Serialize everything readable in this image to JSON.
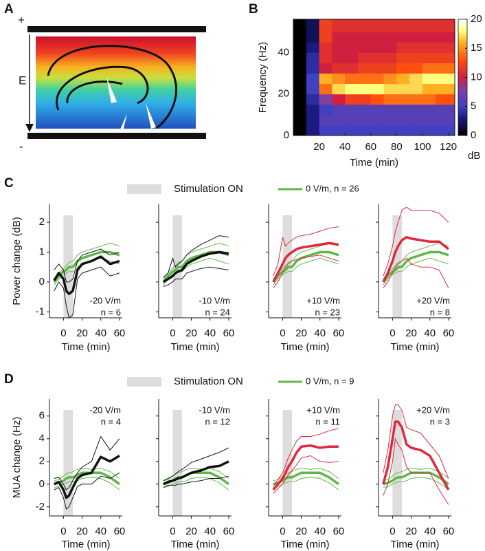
{
  "panel_labels": [
    "A",
    "B",
    "C",
    "D"
  ],
  "diagram": {
    "plus": "+",
    "field": "E",
    "minus": "-"
  },
  "chart_data": [
    {
      "type": "heatmap",
      "xlabel": "Time (min)",
      "ylabel": "Frequency (Hz)",
      "colorbar_label": "dB",
      "xlim": [
        0,
        125
      ],
      "ylim": [
        0,
        56
      ],
      "xticks": [
        20,
        40,
        60,
        80,
        100,
        120
      ],
      "yticks": [
        0,
        20,
        40
      ],
      "clim": [
        0,
        20
      ],
      "cticks": [
        0,
        5,
        10,
        15,
        20
      ],
      "x_edges": [
        0,
        10,
        20,
        30,
        40,
        50,
        60,
        70,
        80,
        90,
        100,
        110,
        125
      ],
      "y_edges": [
        0,
        5,
        10,
        15,
        20,
        25,
        30,
        35,
        40,
        45,
        50,
        56
      ],
      "z": [
        [
          0,
          3,
          5,
          5,
          5,
          5,
          5,
          5,
          5,
          5,
          5,
          5
        ],
        [
          0,
          3,
          6,
          6,
          6,
          6,
          6,
          6,
          6,
          6,
          6,
          6
        ],
        [
          0,
          3,
          5,
          6,
          6,
          6,
          6,
          6,
          6,
          6,
          6,
          6
        ],
        [
          0,
          4,
          8,
          10,
          12,
          12,
          13,
          14,
          14,
          14,
          14,
          13
        ],
        [
          0,
          5,
          14,
          17,
          18,
          18,
          18,
          17,
          17,
          17,
          16,
          16
        ],
        [
          0,
          5,
          16,
          15,
          14,
          14,
          14,
          15,
          16,
          17,
          18,
          18
        ],
        [
          0,
          4,
          10,
          11,
          11,
          12,
          12,
          12,
          13,
          13,
          14,
          14
        ],
        [
          0,
          4,
          11,
          10,
          10,
          11,
          11,
          11,
          12,
          12,
          12,
          12
        ],
        [
          0,
          3,
          11,
          10,
          10,
          10,
          10,
          10,
          11,
          11,
          11,
          11
        ],
        [
          0,
          2,
          12,
          10,
          10,
          10,
          10,
          10,
          10,
          10,
          10,
          10
        ],
        [
          0,
          2,
          12,
          11,
          11,
          11,
          11,
          11,
          11,
          11,
          11,
          11
        ]
      ]
    },
    {
      "type": "line",
      "ylabel": "Power change (dB)",
      "xlabel": "Time (min)",
      "legend": {
        "stim_label": "Stimulation ON",
        "control_label": "0 V/m, n = 26"
      },
      "xlim": [
        -15,
        63
      ],
      "ylim": [
        -1.2,
        2.6
      ],
      "xticks": [
        0,
        20,
        40,
        60
      ],
      "yticks": [
        -1,
        0,
        1,
        2
      ],
      "stim": [
        0,
        10
      ],
      "stim_color": "#dddddd",
      "x": [
        -10,
        -5,
        0,
        3,
        6,
        10,
        15,
        20,
        30,
        40,
        50,
        60
      ],
      "control": {
        "color": "#5cb847",
        "mean": [
          0,
          0.2,
          0.35,
          0.4,
          0.5,
          0.5,
          0.7,
          0.8,
          0.9,
          1.0,
          1.0,
          0.9
        ],
        "upper": [
          0.1,
          0.3,
          0.45,
          0.55,
          0.65,
          0.7,
          0.9,
          1.0,
          1.1,
          1.2,
          1.3,
          1.2
        ],
        "lower": [
          -0.1,
          0.1,
          0.25,
          0.3,
          0.35,
          0.35,
          0.5,
          0.6,
          0.7,
          0.8,
          0.7,
          0.6
        ]
      },
      "panels": [
        {
          "field": "-20 V/m",
          "n": "n = 6",
          "color": "#111111",
          "mean": [
            0.05,
            0.3,
            0.1,
            -0.3,
            -0.4,
            -0.3,
            0.4,
            0.6,
            0.7,
            0.85,
            0.6,
            0.7
          ],
          "upper": [
            0.4,
            0.6,
            0.4,
            0,
            0,
            0.1,
            0.7,
            0.9,
            1.0,
            1.1,
            0.9,
            1.0
          ],
          "lower": [
            -0.3,
            0,
            -0.2,
            -0.8,
            -1.2,
            -1.1,
            0.1,
            0.3,
            0.4,
            0.5,
            0.2,
            0.3
          ]
        },
        {
          "field": "-10 V/m",
          "n": "n = 24",
          "color": "#111111",
          "mean": [
            0,
            0.1,
            0.2,
            0.3,
            0.35,
            0.4,
            0.6,
            0.7,
            0.85,
            0.95,
            1.0,
            0.95
          ],
          "upper": [
            0.15,
            0.3,
            0.8,
            0.5,
            0.6,
            0.7,
            0.9,
            1.05,
            1.25,
            1.4,
            1.55,
            1.5
          ],
          "lower": [
            -0.15,
            -0.1,
            0,
            0.1,
            0.1,
            0.1,
            0.3,
            0.35,
            0.45,
            0.5,
            0.45,
            0.4
          ]
        },
        {
          "field": "+10 V/m",
          "n": "n = 23",
          "color": "#e0283c",
          "mean": [
            0,
            0.3,
            0.6,
            0.8,
            0.9,
            1.0,
            1.1,
            1.15,
            1.2,
            1.25,
            1.3,
            1.25
          ],
          "upper": [
            0.2,
            0.6,
            1.5,
            1.2,
            1.3,
            1.4,
            1.5,
            1.55,
            1.6,
            1.7,
            1.8,
            1.85
          ],
          "lower": [
            -0.2,
            0,
            0.3,
            0.5,
            0.6,
            0.7,
            0.75,
            0.8,
            0.85,
            0.9,
            0.8,
            0.7
          ]
        },
        {
          "field": "+20 V/m",
          "n": "n = 8",
          "color": "#e0283c",
          "mean": [
            0,
            0.3,
            0.7,
            1.0,
            1.2,
            1.4,
            1.5,
            1.45,
            1.4,
            1.35,
            1.35,
            1.1
          ],
          "upper": [
            0.2,
            0.6,
            1.2,
            1.7,
            2.0,
            2.4,
            2.5,
            2.4,
            2.4,
            2.4,
            2.3,
            2.0
          ],
          "lower": [
            -0.2,
            0,
            0.3,
            0.5,
            0.6,
            0.7,
            0.8,
            0.6,
            0.5,
            0.5,
            0.4,
            -0.2
          ]
        }
      ]
    },
    {
      "type": "line",
      "ylabel": "MUA change (Hz)",
      "xlabel": "Time (min)",
      "legend": {
        "stim_label": "Stimulation ON",
        "control_label": "0 V/m, n = 9"
      },
      "xlim": [
        -15,
        63
      ],
      "ylim": [
        -2.8,
        7.5
      ],
      "xticks": [
        0,
        20,
        40,
        60
      ],
      "yticks": [
        -2,
        0,
        2,
        4,
        6
      ],
      "stim": [
        0,
        10
      ],
      "stim_color": "#dddddd",
      "x": [
        -10,
        -5,
        0,
        3,
        6,
        10,
        15,
        20,
        30,
        40,
        50,
        60
      ],
      "control": {
        "color": "#5cb847",
        "mean": [
          0,
          0.1,
          0.3,
          0.5,
          0.6,
          0.6,
          0.8,
          1.0,
          1.0,
          1.0,
          0.6,
          0
        ],
        "upper": [
          0.3,
          0.4,
          0.7,
          0.9,
          1.0,
          1.1,
          1.3,
          1.4,
          1.3,
          1.4,
          1.1,
          0.5
        ],
        "lower": [
          -0.3,
          -0.2,
          0,
          0.1,
          0.2,
          0.2,
          0.3,
          0.5,
          0.6,
          0.5,
          0.1,
          -0.5
        ]
      },
      "panels": [
        {
          "field": "-20 V/m",
          "n": "n = 4",
          "color": "#111111",
          "mean": [
            0,
            0.2,
            -0.5,
            -1.2,
            -1.0,
            -0.3,
            0.5,
            0.8,
            1.0,
            2.4,
            2.0,
            2.5
          ],
          "upper": [
            0.5,
            0.6,
            0,
            -0.5,
            -0.3,
            0.3,
            1.0,
            1.5,
            2.0,
            4.2,
            3.0,
            4.0
          ],
          "lower": [
            -0.5,
            -0.3,
            -1.2,
            -2.2,
            -2.0,
            -1.2,
            -0.2,
            0,
            0,
            0.7,
            0.5,
            1.0
          ]
        },
        {
          "field": "-10 V/m",
          "n": "n = 12",
          "color": "#111111",
          "mean": [
            0,
            0.2,
            0.3,
            0.4,
            0.5,
            0.6,
            0.8,
            1.0,
            1.2,
            1.5,
            1.6,
            2.0
          ],
          "upper": [
            0.3,
            0.5,
            0.7,
            0.9,
            1.1,
            1.3,
            1.6,
            1.9,
            2.2,
            2.5,
            2.8,
            3.2
          ],
          "lower": [
            -0.3,
            -0.1,
            -0.1,
            -0.1,
            0,
            0,
            0.1,
            0.2,
            0.3,
            0.5,
            0.5,
            0.7
          ]
        },
        {
          "field": "+10 V/m",
          "n": "n = 11",
          "color": "#e0283c",
          "mean": [
            -0.5,
            0,
            0.5,
            1.0,
            1.5,
            2.0,
            2.8,
            3.3,
            3.4,
            3.2,
            3.3,
            3.3
          ],
          "upper": [
            -0.2,
            0.4,
            1.0,
            1.6,
            2.3,
            3.0,
            3.8,
            4.2,
            4.2,
            4.4,
            4.7,
            4.9
          ],
          "lower": [
            -0.8,
            -0.4,
            0,
            0.4,
            0.8,
            1.2,
            1.7,
            2.3,
            2.5,
            2.0,
            1.9,
            2.0
          ]
        },
        {
          "field": "+20 V/m",
          "n": "n = 3",
          "color": "#e0283c",
          "mean": [
            0,
            1.5,
            4,
            5.5,
            5.5,
            5.0,
            3.5,
            3.2,
            3.0,
            2.5,
            1.0,
            -0.5
          ],
          "upper": [
            1,
            3,
            6,
            7,
            7,
            6.5,
            5,
            4.8,
            4.5,
            3.5,
            2.5,
            0.5
          ],
          "lower": [
            -1,
            0,
            2,
            4,
            3.5,
            3,
            1.5,
            1.0,
            1.0,
            1.0,
            -0.5,
            -1.8
          ]
        }
      ]
    }
  ]
}
